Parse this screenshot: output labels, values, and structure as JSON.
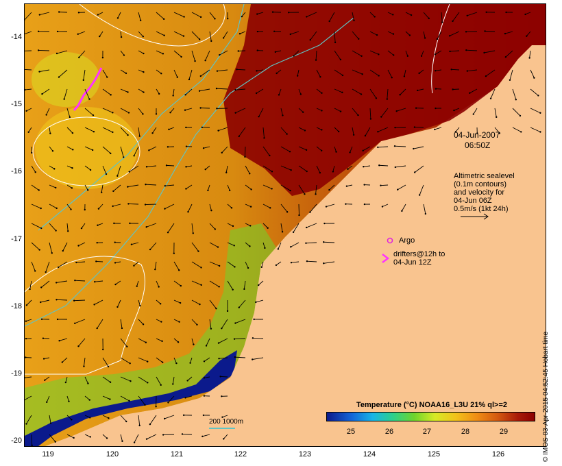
{
  "map": {
    "lon_range": [
      118.6,
      126.7
    ],
    "lat_range": [
      -20.1,
      -13.6
    ],
    "lat_ticks": [
      "-14",
      "-15",
      "-16",
      "-17",
      "-18",
      "-19",
      "-20"
    ],
    "lon_ticks": [
      "119",
      "120",
      "121",
      "122",
      "123",
      "124",
      "125",
      "126"
    ],
    "land_color": "#f9c48f"
  },
  "annotations": {
    "date": "04-Jun-2007",
    "time": "06:50Z",
    "altimetry": [
      "Altimetric sealevel",
      "(0.1m contours)",
      "and velocity for",
      "04-Jun 06Z",
      "0.5m/s (1kt 24h)"
    ],
    "argo": "Argo",
    "drifters": [
      "drifters@12h to",
      "04-Jun 12Z"
    ],
    "depth_contours": "200  1000m"
  },
  "colorbar": {
    "title": "Temperature (°C) NOAA16_L3U 21% ql>=2",
    "ticks": [
      "25",
      "26",
      "27",
      "28",
      "29"
    ]
  },
  "footer": {
    "timestamp": "© IMOS 03-Apr-2015 04:52:45 Hobart time"
  },
  "colors": {
    "argo": "#e020e0",
    "drifter": "#ff33ff",
    "contour": "#ffffff",
    "bathymetry": "#5fc4c4"
  }
}
